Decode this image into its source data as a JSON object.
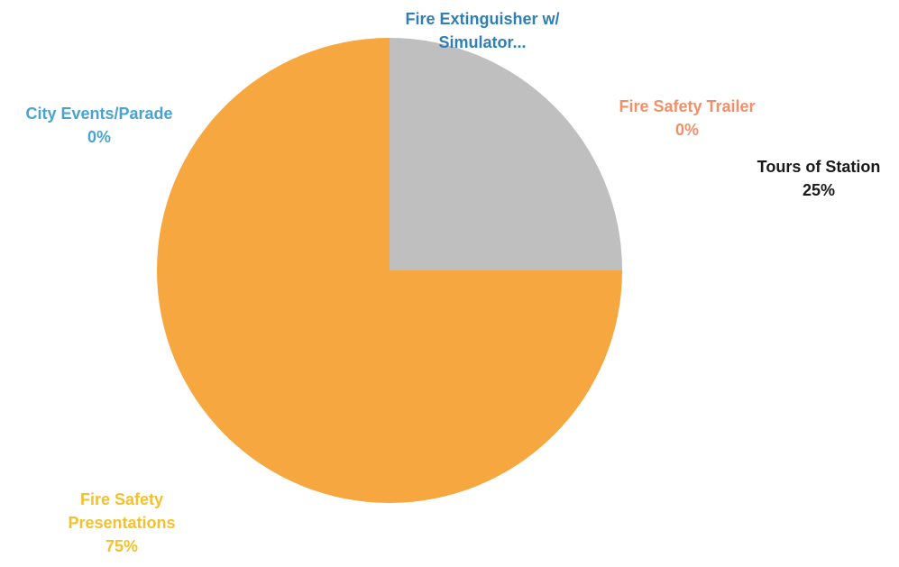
{
  "chart_data": {
    "type": "pie",
    "slices": [
      {
        "label": "Fire Extinguisher w/ Simulator...",
        "label_lines": [
          "Fire Extinguisher w/",
          "Simulator..."
        ],
        "value_label": "",
        "value": 0,
        "color": "#3a8bc4"
      },
      {
        "label": "Tours of Station",
        "label_lines": [
          "Tours of Station"
        ],
        "value_label": "25%",
        "value": 25,
        "color": "#bfbfbf"
      },
      {
        "label": "Fire Safety Presentations",
        "label_lines": [
          "Fire Safety",
          "Presentations"
        ],
        "value_label": "75%",
        "value": 75,
        "color": "#f6a73f"
      },
      {
        "label": "City Events/Parade",
        "label_lines": [
          "City Events/Parade"
        ],
        "value_label": "0%",
        "value": 0,
        "color": "#4aa3cf"
      },
      {
        "label": "Fire Safety Trailer",
        "label_lines": [
          "Fire Safety Trailer"
        ],
        "value_label": "0%",
        "value": 0,
        "color": "#f0906a"
      }
    ],
    "label_colors": {
      "Fire Extinguisher w/ Simulator...": "#2f7fb5",
      "Tours of Station": "#1a1a1a",
      "Fire Safety Presentations": "#f2c12e",
      "City Events/Parade": "#4aa3cf",
      "Fire Safety Trailer": "#f0906a"
    },
    "start_angle_deg": 0,
    "direction": "clockwise"
  }
}
